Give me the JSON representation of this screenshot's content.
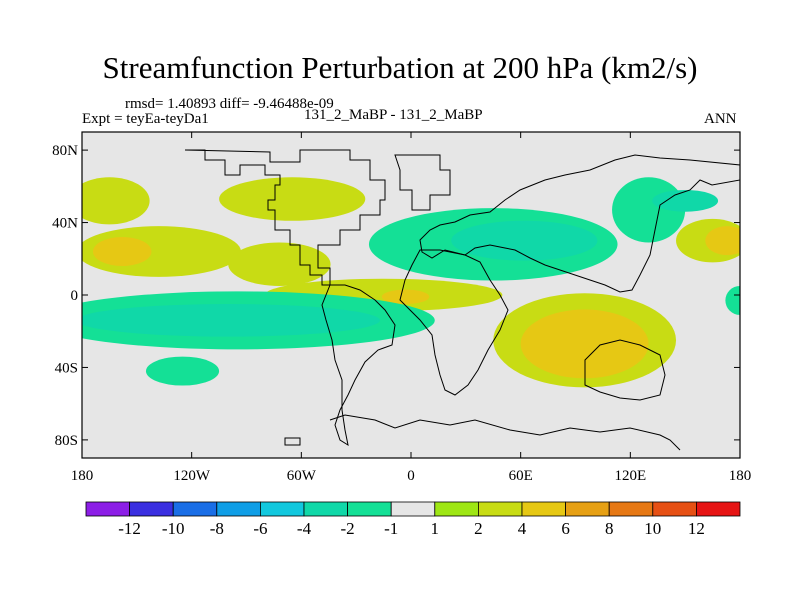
{
  "chart_data": {
    "type": "heatmap",
    "title": "Streamfunction Perturbation at 200 hPa (km2/s)",
    "stats": "rmsd= 1.40893 diff= -9.46488e-09",
    "experiment": "Expt = teyEa-teyDa1",
    "case_label": "131_2_MaBP - 131_2_MaBP",
    "season": "ANN",
    "xaxis": {
      "range": [
        -180,
        180
      ],
      "ticks": [
        -180,
        -120,
        -60,
        0,
        60,
        120,
        180
      ],
      "tick_labels": [
        "180",
        "120W",
        "60W",
        "0",
        "60E",
        "120E",
        "180"
      ]
    },
    "yaxis": {
      "range": [
        -90,
        90
      ],
      "ticks": [
        80,
        40,
        0,
        -40,
        -80
      ],
      "tick_labels": [
        "80N",
        "40N",
        "0",
        "40S",
        "80S"
      ]
    },
    "colorbar": {
      "colors": [
        "#8c1ee6",
        "#3a2fe0",
        "#1a6ee6",
        "#0f9ee6",
        "#12c8de",
        "#10d8a8",
        "#14e096",
        "#e6e6e6",
        "#9ee614",
        "#c8dc14",
        "#e6c814",
        "#e6a014",
        "#e67814",
        "#e65014",
        "#e61414"
      ],
      "labels": [
        "-12",
        "-10",
        "-8",
        "-6",
        "-4",
        "-2",
        "-1",
        "1",
        "2",
        "4",
        "6",
        "8",
        "10",
        "12"
      ]
    },
    "fields": [
      {
        "level": "2",
        "lon": -165,
        "lat": 52,
        "rlon": 22,
        "rlat": 13
      },
      {
        "level": "2",
        "lon": -138,
        "lat": 24,
        "rlon": 45,
        "rlat": 14
      },
      {
        "level": "4",
        "lon": -158,
        "lat": 24,
        "rlon": 16,
        "rlat": 8
      },
      {
        "level": "2",
        "lon": -65,
        "lat": 53,
        "rlon": 40,
        "rlat": 12
      },
      {
        "level": "2",
        "lon": -72,
        "lat": 17,
        "rlon": 28,
        "rlat": 12
      },
      {
        "level": "2",
        "lon": -15,
        "lat": 0,
        "rlon": 65,
        "rlat": 9
      },
      {
        "level": "4",
        "lon": -3,
        "lat": -1,
        "rlon": 13,
        "rlat": 4
      },
      {
        "level": "-1",
        "lon": -95,
        "lat": -14,
        "rlon": 108,
        "rlat": 16
      },
      {
        "level": "-2",
        "lon": -100,
        "lat": -14,
        "rlon": 83,
        "rlat": 9
      },
      {
        "level": "-1",
        "lon": -125,
        "lat": -42,
        "rlon": 20,
        "rlat": 8
      },
      {
        "level": "-1",
        "lon": 45,
        "lat": 28,
        "rlon": 68,
        "rlat": 20
      },
      {
        "level": "-2",
        "lon": 62,
        "lat": 30,
        "rlon": 40,
        "rlat": 11
      },
      {
        "level": "-1",
        "lon": 130,
        "lat": 47,
        "rlon": 20,
        "rlat": 18
      },
      {
        "level": "-2",
        "lon": 150,
        "lat": 52,
        "rlon": 18,
        "rlat": 6
      },
      {
        "level": "2",
        "lon": 95,
        "lat": -25,
        "rlon": 50,
        "rlat": 26
      },
      {
        "level": "4",
        "lon": 95,
        "lat": -27,
        "rlon": 35,
        "rlat": 19
      },
      {
        "level": "2",
        "lon": 165,
        "lat": 30,
        "rlon": 20,
        "rlat": 12
      },
      {
        "level": "4",
        "lon": 173,
        "lat": 30,
        "rlon": 12,
        "rlat": 8
      },
      {
        "level": "-1",
        "lon": 180,
        "lat": -3,
        "rlon": 8,
        "rlat": 8
      }
    ]
  }
}
